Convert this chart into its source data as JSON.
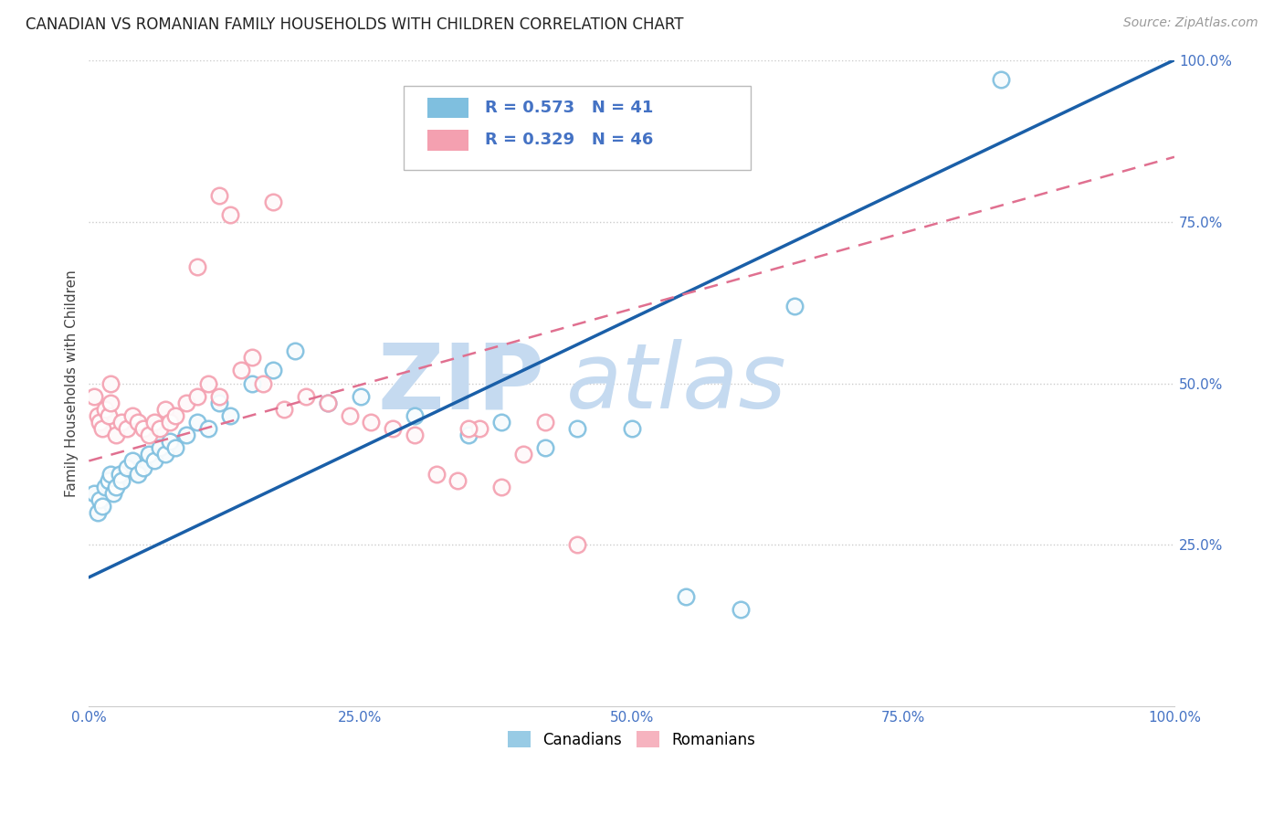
{
  "title": "CANADIAN VS ROMANIAN FAMILY HOUSEHOLDS WITH CHILDREN CORRELATION CHART",
  "source": "Source: ZipAtlas.com",
  "ylabel": "Family Households with Children",
  "xlim": [
    0.0,
    1.0
  ],
  "ylim": [
    0.0,
    1.0
  ],
  "xticks": [
    0.0,
    0.25,
    0.5,
    0.75,
    1.0
  ],
  "yticks": [
    0.25,
    0.5,
    0.75,
    1.0
  ],
  "xticklabels": [
    "0.0%",
    "25.0%",
    "50.0%",
    "75.0%",
    "100.0%"
  ],
  "yticklabels": [
    "25.0%",
    "50.0%",
    "75.0%",
    "100.0%"
  ],
  "canadian_color": "#7fbfdf",
  "romanian_color": "#f4a0b0",
  "trendline_canadian_color": "#1a5fa8",
  "trendline_romanian_color": "#e07090",
  "tick_label_color": "#4472c4",
  "R_canadian": 0.573,
  "N_canadian": 41,
  "R_romanian": 0.329,
  "N_romanian": 46,
  "watermark_zip": "ZIP",
  "watermark_atlas": "atlas",
  "legend_label_canadian": "Canadians",
  "legend_label_romanian": "Romanians",
  "title_fontsize": 12,
  "axis_label_fontsize": 11,
  "tick_fontsize": 11,
  "legend_fontsize": 12,
  "watermark_fontsize_zip": 72,
  "watermark_fontsize_atlas": 72,
  "canadian_x": [
    0.005,
    0.008,
    0.01,
    0.012,
    0.015,
    0.018,
    0.02,
    0.022,
    0.025,
    0.028,
    0.03,
    0.035,
    0.04,
    0.045,
    0.05,
    0.055,
    0.06,
    0.065,
    0.07,
    0.075,
    0.08,
    0.09,
    0.1,
    0.11,
    0.12,
    0.13,
    0.15,
    0.17,
    0.19,
    0.22,
    0.25,
    0.3,
    0.35,
    0.38,
    0.42,
    0.45,
    0.5,
    0.55,
    0.6,
    0.65,
    0.84
  ],
  "canadian_y": [
    0.33,
    0.3,
    0.32,
    0.31,
    0.34,
    0.35,
    0.36,
    0.33,
    0.34,
    0.36,
    0.35,
    0.37,
    0.38,
    0.36,
    0.37,
    0.39,
    0.38,
    0.4,
    0.39,
    0.41,
    0.4,
    0.42,
    0.44,
    0.43,
    0.47,
    0.45,
    0.5,
    0.52,
    0.55,
    0.47,
    0.48,
    0.45,
    0.42,
    0.44,
    0.4,
    0.43,
    0.43,
    0.17,
    0.15,
    0.62,
    0.97
  ],
  "romanian_x": [
    0.005,
    0.008,
    0.01,
    0.012,
    0.015,
    0.018,
    0.02,
    0.025,
    0.03,
    0.035,
    0.04,
    0.045,
    0.05,
    0.055,
    0.06,
    0.065,
    0.07,
    0.075,
    0.08,
    0.09,
    0.1,
    0.11,
    0.12,
    0.13,
    0.14,
    0.15,
    0.16,
    0.17,
    0.18,
    0.2,
    0.22,
    0.24,
    0.26,
    0.28,
    0.3,
    0.32,
    0.34,
    0.36,
    0.38,
    0.4,
    0.42,
    0.1,
    0.12,
    0.35,
    0.02,
    0.45
  ],
  "romanian_y": [
    0.48,
    0.45,
    0.44,
    0.43,
    0.46,
    0.45,
    0.47,
    0.42,
    0.44,
    0.43,
    0.45,
    0.44,
    0.43,
    0.42,
    0.44,
    0.43,
    0.46,
    0.44,
    0.45,
    0.47,
    0.48,
    0.5,
    0.79,
    0.76,
    0.52,
    0.54,
    0.5,
    0.78,
    0.46,
    0.48,
    0.47,
    0.45,
    0.44,
    0.43,
    0.42,
    0.36,
    0.35,
    0.43,
    0.34,
    0.39,
    0.44,
    0.68,
    0.48,
    0.43,
    0.5,
    0.25
  ],
  "trendline_canadian_start_x": 0.0,
  "trendline_canadian_start_y": 0.2,
  "trendline_canadian_end_x": 1.0,
  "trendline_canadian_end_y": 1.0,
  "trendline_romanian_start_x": 0.0,
  "trendline_romanian_start_y": 0.38,
  "trendline_romanian_end_x": 1.0,
  "trendline_romanian_end_y": 0.85
}
